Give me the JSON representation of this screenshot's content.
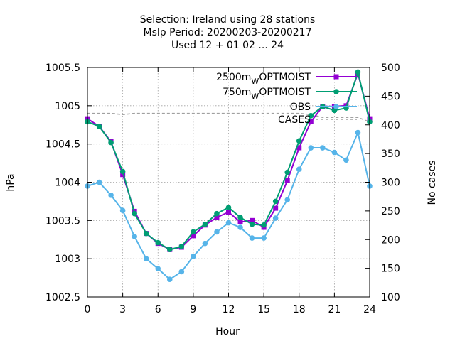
{
  "chart_data": {
    "type": "line",
    "title_lines": [
      "Selection: Ireland using    28 stations",
      "Mslp   Period: 20200203-20200217",
      "Used  12 + 01 02 ... 24"
    ],
    "xlabel": "Hour",
    "ylabel": "hPa",
    "y2label": "No cases",
    "xlim": [
      0,
      24
    ],
    "ylim": [
      1002.5,
      1005.5
    ],
    "y2lim": [
      100,
      500
    ],
    "xticks": [
      "0",
      "3",
      "6",
      "9",
      "12",
      "15",
      "18",
      "21",
      "24"
    ],
    "yticks": [
      "1002.5",
      "1003",
      "1003.5",
      "1004",
      "1004.5",
      "1005",
      "1005.5"
    ],
    "y2ticks": [
      "100",
      "150",
      "200",
      "250",
      "300",
      "350",
      "400",
      "450",
      "500"
    ],
    "grid": true,
    "legend_position": "top-right",
    "x": [
      0,
      1,
      2,
      3,
      4,
      5,
      6,
      7,
      8,
      9,
      10,
      11,
      12,
      13,
      14,
      15,
      16,
      17,
      18,
      19,
      20,
      21,
      22,
      23,
      24
    ],
    "series": [
      {
        "name": "2500m",
        "name_sub": "W",
        "name_suffix": "OPTMOIST",
        "color": "#9400d3",
        "marker": "square",
        "axis": "y",
        "values": [
          1004.83,
          1004.73,
          1004.53,
          1004.1,
          1003.62,
          1003.33,
          1003.2,
          1003.12,
          1003.15,
          1003.3,
          1003.44,
          1003.54,
          1003.61,
          1003.48,
          1003.5,
          1003.41,
          1003.66,
          1004.02,
          1004.45,
          1004.79,
          1004.99,
          1004.99,
          1005.0,
          1005.42,
          1004.83
        ]
      },
      {
        "name": "750m",
        "name_sub": "W",
        "name_suffix": "OPTMOIST",
        "color": "#009e73",
        "marker": "circle",
        "axis": "y",
        "values": [
          1004.79,
          1004.73,
          1004.52,
          1004.14,
          1003.59,
          1003.33,
          1003.21,
          1003.12,
          1003.16,
          1003.35,
          1003.45,
          1003.59,
          1003.67,
          1003.54,
          1003.45,
          1003.44,
          1003.75,
          1004.13,
          1004.54,
          1004.87,
          1004.99,
          1004.94,
          1004.97,
          1005.44,
          1004.79
        ]
      },
      {
        "name": "OBS",
        "color": "#56b4e9",
        "marker": "circle",
        "axis": "y",
        "values": [
          1003.95,
          1004.0,
          1003.83,
          1003.63,
          1003.29,
          1003.0,
          1002.87,
          1002.73,
          1002.83,
          1003.03,
          1003.2,
          1003.35,
          1003.47,
          1003.41,
          1003.27,
          1003.27,
          1003.53,
          1003.77,
          1004.17,
          1004.45,
          1004.45,
          1004.39,
          1004.29,
          1004.65,
          1003.95
        ]
      },
      {
        "name": "CASES",
        "color": "#a0a0a0",
        "dashed": true,
        "axis": "y2",
        "values": [
          420,
          420,
          420,
          418,
          420,
          420,
          420,
          420,
          420,
          420,
          420,
          420,
          420,
          420,
          420,
          420,
          420,
          420,
          420,
          418,
          413,
          413,
          413,
          413,
          405
        ]
      }
    ]
  }
}
